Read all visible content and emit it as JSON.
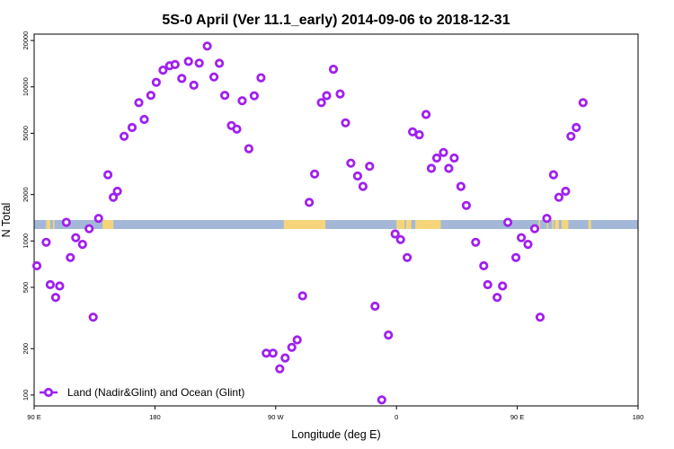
{
  "chart_data": {
    "type": "scatter",
    "title": "5S-0 April (Ver 11.1_early)   2014-09-06 to 2018-12-31",
    "xlabel": "Longitude (deg E)",
    "ylabel": "N Total",
    "x_ticks": [
      {
        "value": 90,
        "label": "90 E"
      },
      {
        "value": 180,
        "label": "180"
      },
      {
        "value": 270,
        "label": "90 W"
      },
      {
        "value": 360,
        "label": "0"
      },
      {
        "value": 450,
        "label": "90 E"
      },
      {
        "value": 540,
        "label": "180"
      }
    ],
    "y_ticks": [
      {
        "value": 100,
        "label": "100"
      },
      {
        "value": 200,
        "label": "200"
      },
      {
        "value": 500,
        "label": "500"
      },
      {
        "value": 1000,
        "label": "1000"
      },
      {
        "value": 2000,
        "label": "2000"
      },
      {
        "value": 5000,
        "label": "5000"
      },
      {
        "value": 10000,
        "label": "10000"
      },
      {
        "value": 20000,
        "label": "20000"
      }
    ],
    "xlim": [
      90,
      540
    ],
    "ylim": [
      85,
      22000
    ],
    "y_scale": "log",
    "marker_color": "#a020f0",
    "legend": {
      "position": "bottom-left",
      "label": "Land (Nadir&Glint) and Ocean (Glint)"
    },
    "band": {
      "ocean_color": "#a3b8d8",
      "land_color": "#f6d57a",
      "land_segments": [
        [
          99,
          100
        ],
        [
          100,
          102
        ],
        [
          104,
          105
        ],
        [
          141,
          146
        ],
        [
          144,
          145
        ],
        [
          146,
          147
        ],
        [
          147,
          149
        ],
        [
          276,
          307
        ],
        [
          300,
          302
        ],
        [
          300,
          301
        ],
        [
          301,
          303
        ],
        [
          360,
          366
        ],
        [
          367,
          371
        ],
        [
          374,
          393
        ],
        [
          390,
          393
        ],
        [
          466,
          467
        ],
        [
          472,
          473
        ],
        [
          476,
          477
        ],
        [
          478,
          481
        ],
        [
          483,
          487
        ],
        [
          486,
          488
        ],
        [
          503,
          505
        ]
      ]
    },
    "series": [
      {
        "name": "Land (Nadir&Glint) and Ocean (Glint)",
        "points": [
          {
            "x": 92,
            "y": 690
          },
          {
            "x": 99,
            "y": 980
          },
          {
            "x": 102,
            "y": 520
          },
          {
            "x": 106,
            "y": 430
          },
          {
            "x": 109,
            "y": 510
          },
          {
            "x": 114,
            "y": 1320
          },
          {
            "x": 117,
            "y": 780
          },
          {
            "x": 121,
            "y": 1050
          },
          {
            "x": 126,
            "y": 950
          },
          {
            "x": 131,
            "y": 1200
          },
          {
            "x": 134,
            "y": 320
          },
          {
            "x": 138,
            "y": 1400
          },
          {
            "x": 145,
            "y": 2690
          },
          {
            "x": 149,
            "y": 1920
          },
          {
            "x": 152,
            "y": 2100
          },
          {
            "x": 157,
            "y": 4780
          },
          {
            "x": 163,
            "y": 5450
          },
          {
            "x": 168,
            "y": 7900
          },
          {
            "x": 172,
            "y": 6150
          },
          {
            "x": 177,
            "y": 8810
          },
          {
            "x": 181,
            "y": 10700
          },
          {
            "x": 186,
            "y": 12840
          },
          {
            "x": 191,
            "y": 13720
          },
          {
            "x": 195,
            "y": 13960
          },
          {
            "x": 200,
            "y": 11340
          },
          {
            "x": 205,
            "y": 14630
          },
          {
            "x": 209,
            "y": 10250
          },
          {
            "x": 213,
            "y": 14270
          },
          {
            "x": 219,
            "y": 18400
          },
          {
            "x": 224,
            "y": 11600
          },
          {
            "x": 228,
            "y": 14230
          },
          {
            "x": 232,
            "y": 8810
          },
          {
            "x": 237,
            "y": 5610
          },
          {
            "x": 241,
            "y": 5320
          },
          {
            "x": 245,
            "y": 8130
          },
          {
            "x": 250,
            "y": 3970
          },
          {
            "x": 254,
            "y": 8750
          },
          {
            "x": 259,
            "y": 11460
          },
          {
            "x": 263,
            "y": 187
          },
          {
            "x": 268,
            "y": 187
          },
          {
            "x": 273,
            "y": 148
          },
          {
            "x": 277,
            "y": 174
          },
          {
            "x": 282,
            "y": 204
          },
          {
            "x": 286,
            "y": 228
          },
          {
            "x": 290,
            "y": 440
          },
          {
            "x": 295,
            "y": 1780
          },
          {
            "x": 299,
            "y": 2720
          },
          {
            "x": 304,
            "y": 7900
          },
          {
            "x": 308,
            "y": 8770
          },
          {
            "x": 313,
            "y": 13020
          },
          {
            "x": 318,
            "y": 9000
          },
          {
            "x": 322,
            "y": 5840
          },
          {
            "x": 326,
            "y": 3200
          },
          {
            "x": 331,
            "y": 2640
          },
          {
            "x": 335,
            "y": 2260
          },
          {
            "x": 340,
            "y": 3050
          },
          {
            "x": 344,
            "y": 377
          },
          {
            "x": 349,
            "y": 93
          },
          {
            "x": 354,
            "y": 245
          },
          {
            "x": 359,
            "y": 1110
          },
          {
            "x": 363,
            "y": 1020
          },
          {
            "x": 368,
            "y": 780
          },
          {
            "x": 372,
            "y": 5110
          },
          {
            "x": 377,
            "y": 4890
          },
          {
            "x": 382,
            "y": 6620
          },
          {
            "x": 386,
            "y": 2960
          },
          {
            "x": 390,
            "y": 3450
          },
          {
            "x": 395,
            "y": 3750
          },
          {
            "x": 399,
            "y": 2960
          },
          {
            "x": 403,
            "y": 3450
          },
          {
            "x": 408,
            "y": 2260
          },
          {
            "x": 412,
            "y": 1700
          },
          {
            "x": 419,
            "y": 980
          },
          {
            "x": 425,
            "y": 690
          },
          {
            "x": 428,
            "y": 520
          },
          {
            "x": 435,
            "y": 430
          },
          {
            "x": 439,
            "y": 510
          },
          {
            "x": 443,
            "y": 1320
          },
          {
            "x": 449,
            "y": 780
          },
          {
            "x": 453,
            "y": 1050
          },
          {
            "x": 458,
            "y": 950
          },
          {
            "x": 463,
            "y": 1200
          },
          {
            "x": 467,
            "y": 320
          },
          {
            "x": 472,
            "y": 1400
          },
          {
            "x": 477,
            "y": 2690
          },
          {
            "x": 481,
            "y": 1920
          },
          {
            "x": 486,
            "y": 2100
          },
          {
            "x": 490,
            "y": 4780
          },
          {
            "x": 494,
            "y": 5450
          },
          {
            "x": 499,
            "y": 7900
          }
        ]
      }
    ]
  }
}
